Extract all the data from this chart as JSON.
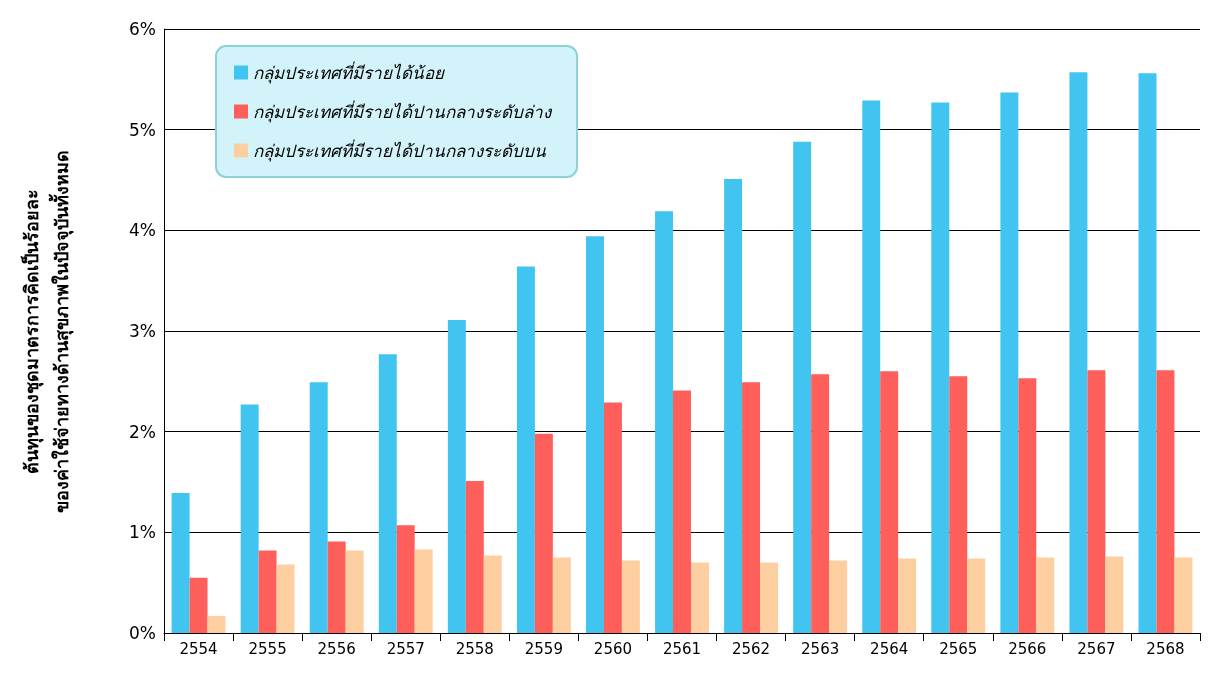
{
  "chart_data": {
    "type": "bar",
    "ylabel": "ต้นทุนของชุดมาตรการคิดเป็นร้อยละ\nของค่าใช้จ่ายทางด้านสุขภาพในปัจจุบันทั้งหมด",
    "categories": [
      "2554",
      "2555",
      "2556",
      "2557",
      "2558",
      "2559",
      "2560",
      "2561",
      "2562",
      "2563",
      "2564",
      "2565",
      "2566",
      "2567",
      "2568"
    ],
    "series": [
      {
        "name": "กลุ่มประเทศที่มีรายได้น้อย",
        "color": "#41c4f0",
        "values": [
          1.39,
          2.27,
          2.49,
          2.77,
          3.11,
          3.64,
          3.94,
          4.19,
          4.51,
          4.88,
          5.29,
          5.27,
          5.37,
          5.57,
          5.56
        ]
      },
      {
        "name": "กลุ่มประเทศที่มีรายได้ปานกลางระดับล่าง",
        "color": "#fe5f5b",
        "values": [
          0.55,
          0.82,
          0.91,
          1.07,
          1.51,
          1.98,
          2.29,
          2.41,
          2.49,
          2.57,
          2.6,
          2.55,
          2.53,
          2.61,
          2.61
        ]
      },
      {
        "name": "กลุ่มประเทศที่มีรายได้ปานกลางระดับบน",
        "color": "#fdcea0",
        "values": [
          0.17,
          0.68,
          0.82,
          0.83,
          0.77,
          0.75,
          0.72,
          0.7,
          0.7,
          0.72,
          0.74,
          0.74,
          0.75,
          0.76,
          0.75
        ]
      }
    ],
    "ylim": [
      0,
      6
    ],
    "yticks": [
      {
        "value": 0,
        "label": "0%"
      },
      {
        "value": 1,
        "label": "1%"
      },
      {
        "value": 2,
        "label": "2%"
      },
      {
        "value": 3,
        "label": "3%"
      },
      {
        "value": 4,
        "label": "4%"
      },
      {
        "value": 5,
        "label": "5%"
      },
      {
        "value": 6,
        "label": "6%"
      }
    ],
    "grid": "y",
    "legend": "top left"
  }
}
